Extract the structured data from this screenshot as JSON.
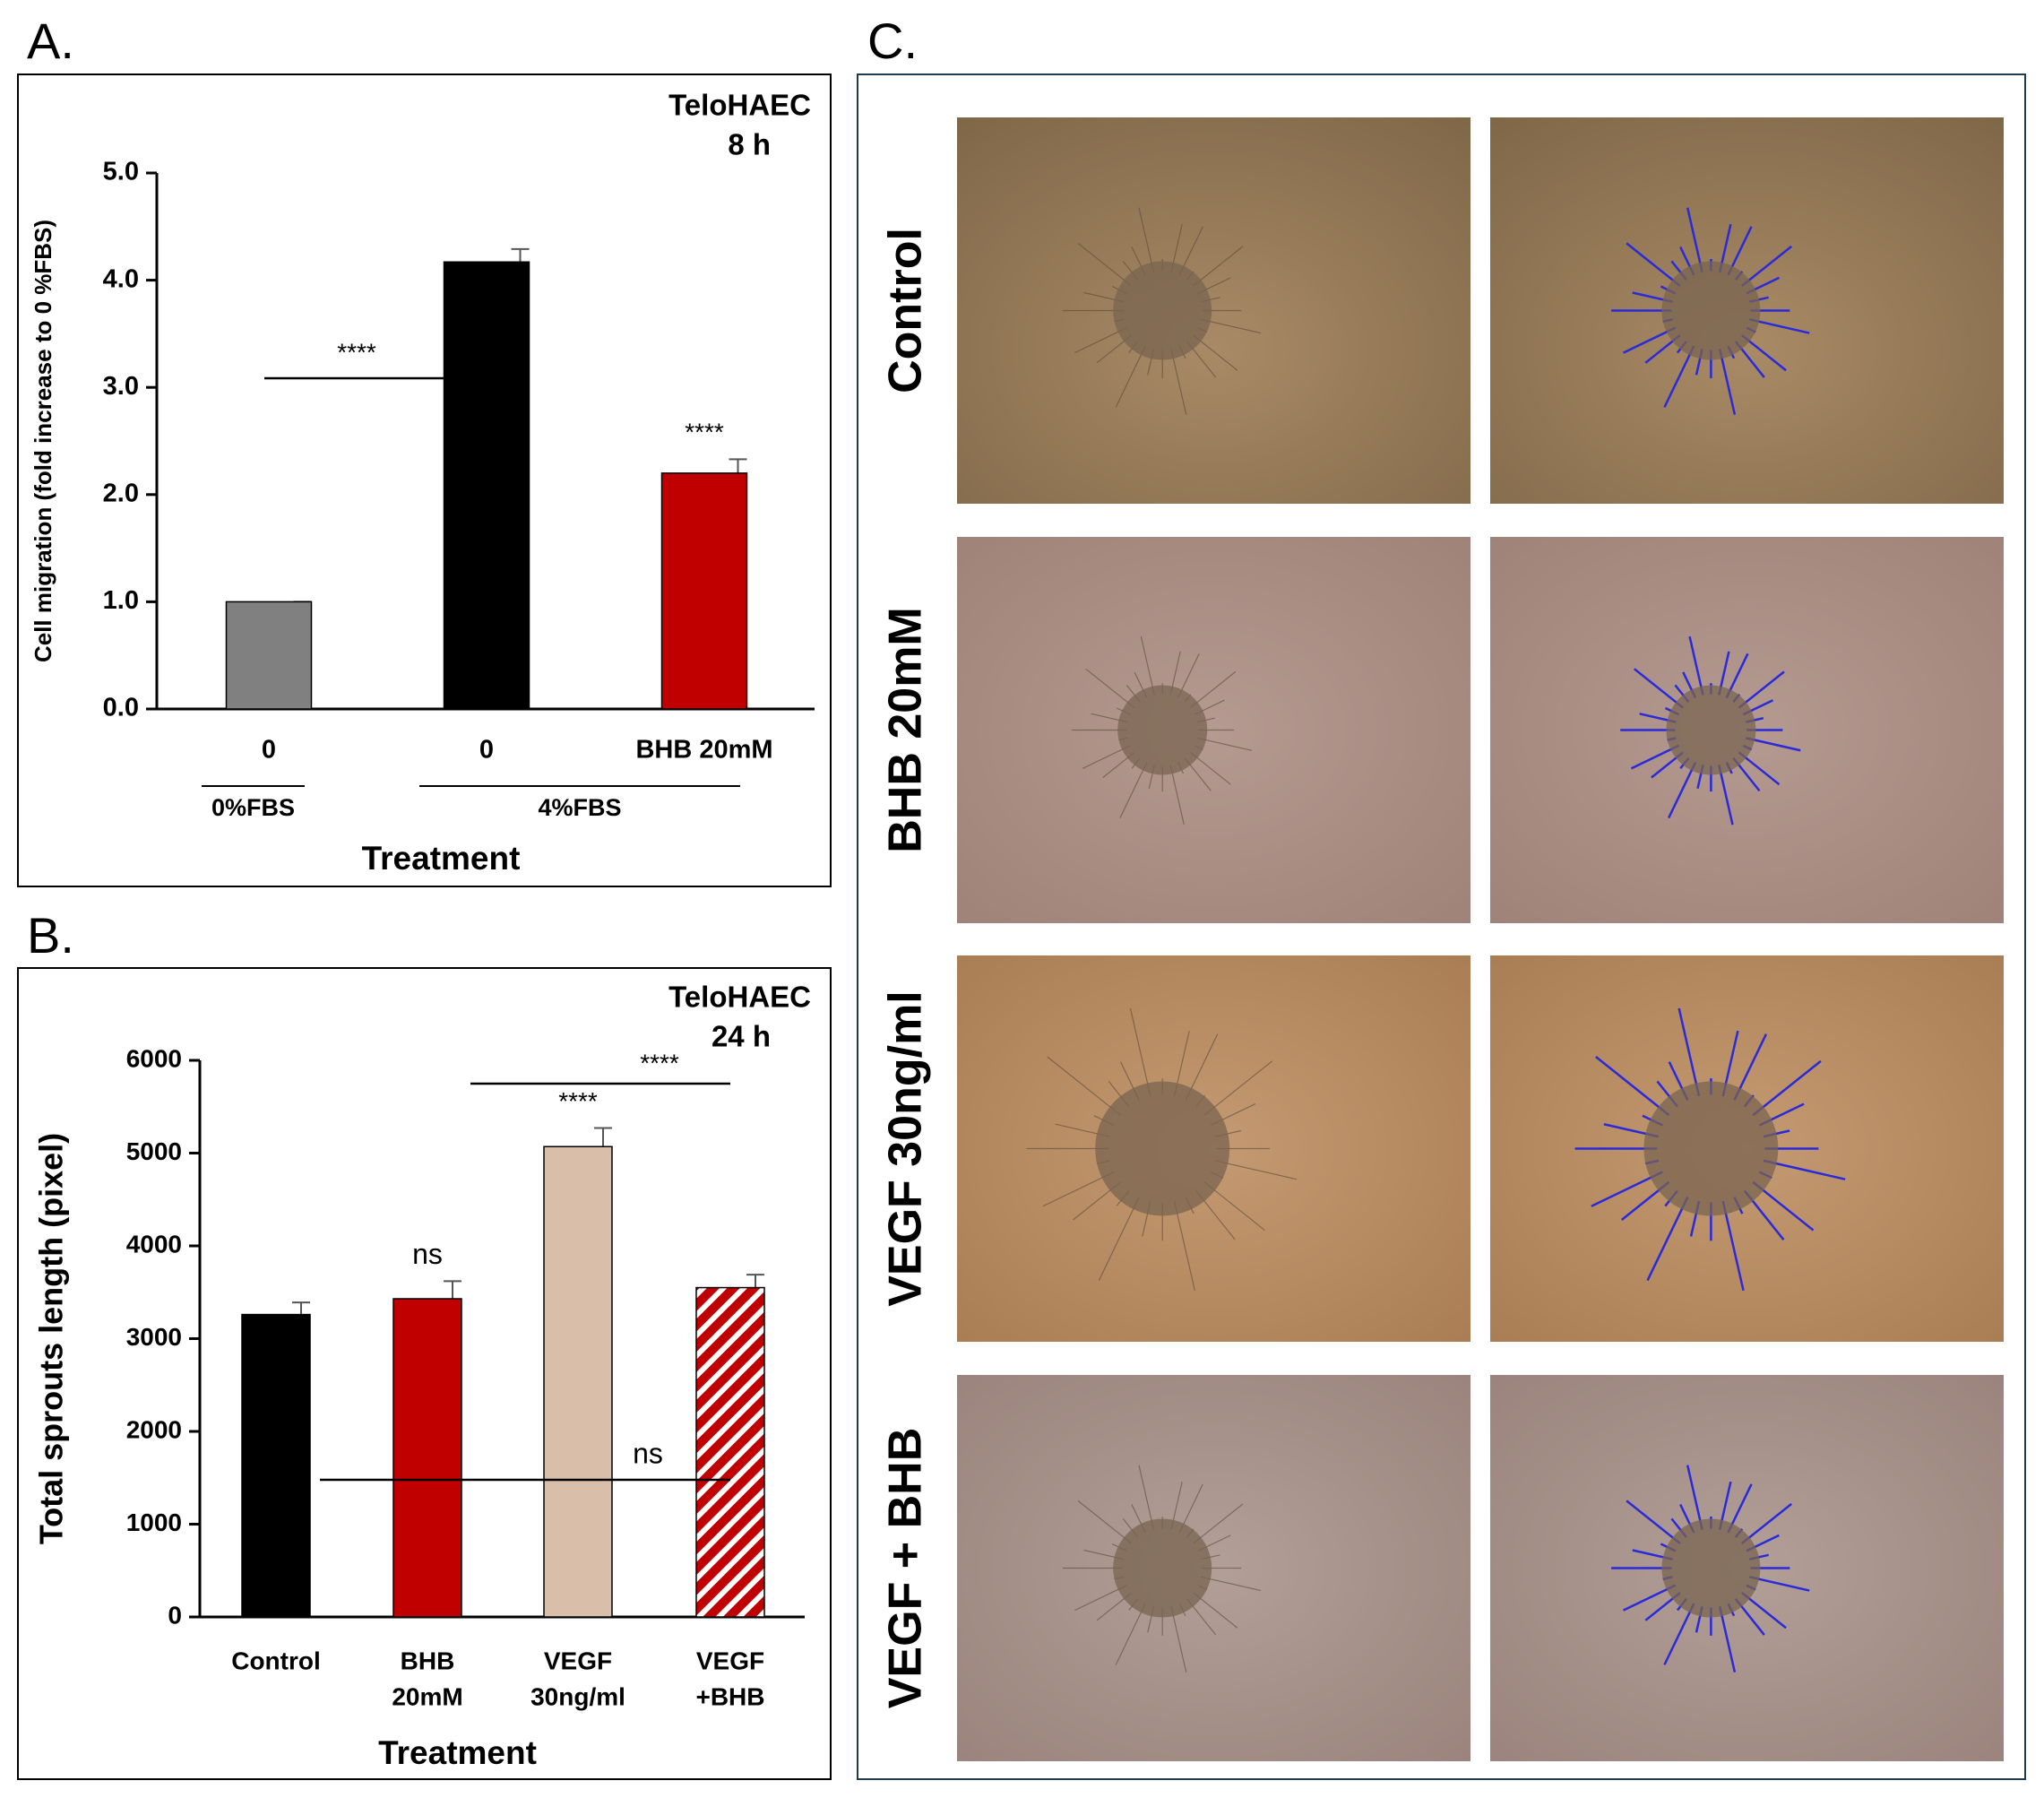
{
  "panel_labels": [
    "A.",
    "B.",
    "C."
  ],
  "chart_data": [
    {
      "type": "bar",
      "annotation": [
        "TeloHAEC",
        "8 h"
      ],
      "ylabel": "Cell migration (fold increase to 0 %FBS)",
      "xlabel": "Treatment",
      "categories": [
        [
          "0"
        ],
        [
          "0"
        ],
        [
          "BHB 20mM"
        ]
      ],
      "groups": [
        {
          "label": "0%FBS",
          "size": 1
        },
        {
          "label": "4%FBS",
          "size": 2
        }
      ],
      "values": [
        1.0,
        4.17,
        2.2
      ],
      "errors": [
        0,
        0.12,
        0.13
      ],
      "colors": [
        "#808080",
        "#000000",
        "#c00000"
      ],
      "hatched": [
        false,
        false,
        false
      ],
      "ylim": [
        0,
        5
      ],
      "yticks": [
        {
          "value": 0,
          "label": "0.0"
        },
        {
          "value": 1,
          "label": "1.0"
        },
        {
          "value": 2,
          "label": "2.0"
        },
        {
          "value": 3,
          "label": "3.0"
        },
        {
          "value": 4,
          "label": "4.0"
        },
        {
          "value": 5,
          "label": "5.0"
        }
      ],
      "significance": [
        {
          "text": "****",
          "from": 0,
          "to": 1
        },
        {
          "text": "****",
          "from": 2,
          "to": 2
        }
      ]
    },
    {
      "type": "bar",
      "annotation": [
        "TeloHAEC",
        "24 h"
      ],
      "ylabel": "Total sprouts length (pixel)",
      "xlabel": "Treatment",
      "categories": [
        [
          "Control"
        ],
        [
          "BHB",
          "20mM"
        ],
        [
          "VEGF",
          "30ng/ml"
        ],
        [
          "VEGF",
          "+BHB"
        ]
      ],
      "values": [
        3260,
        3430,
        5070,
        3550
      ],
      "errors": [
        130,
        190,
        200,
        140
      ],
      "colors": [
        "#000000",
        "#c00000",
        "#d9bfa9",
        "#c00000"
      ],
      "hatched": [
        false,
        false,
        false,
        true
      ],
      "ylim": [
        0,
        6000
      ],
      "yticks": [
        0,
        1000,
        2000,
        3000,
        4000,
        5000,
        6000
      ],
      "significance": [
        {
          "text": "ns",
          "from": 1,
          "to": 1
        },
        {
          "text": "****",
          "from": 2,
          "to": 2
        },
        {
          "text": "****",
          "from": 2,
          "to": 3
        },
        {
          "text": "ns",
          "from": 1,
          "to": 3
        }
      ]
    }
  ],
  "images": {
    "row_labels": [
      "Control",
      "BHB 20mM",
      "VEGF 30ng/ml",
      "VEGF + BHB"
    ]
  }
}
